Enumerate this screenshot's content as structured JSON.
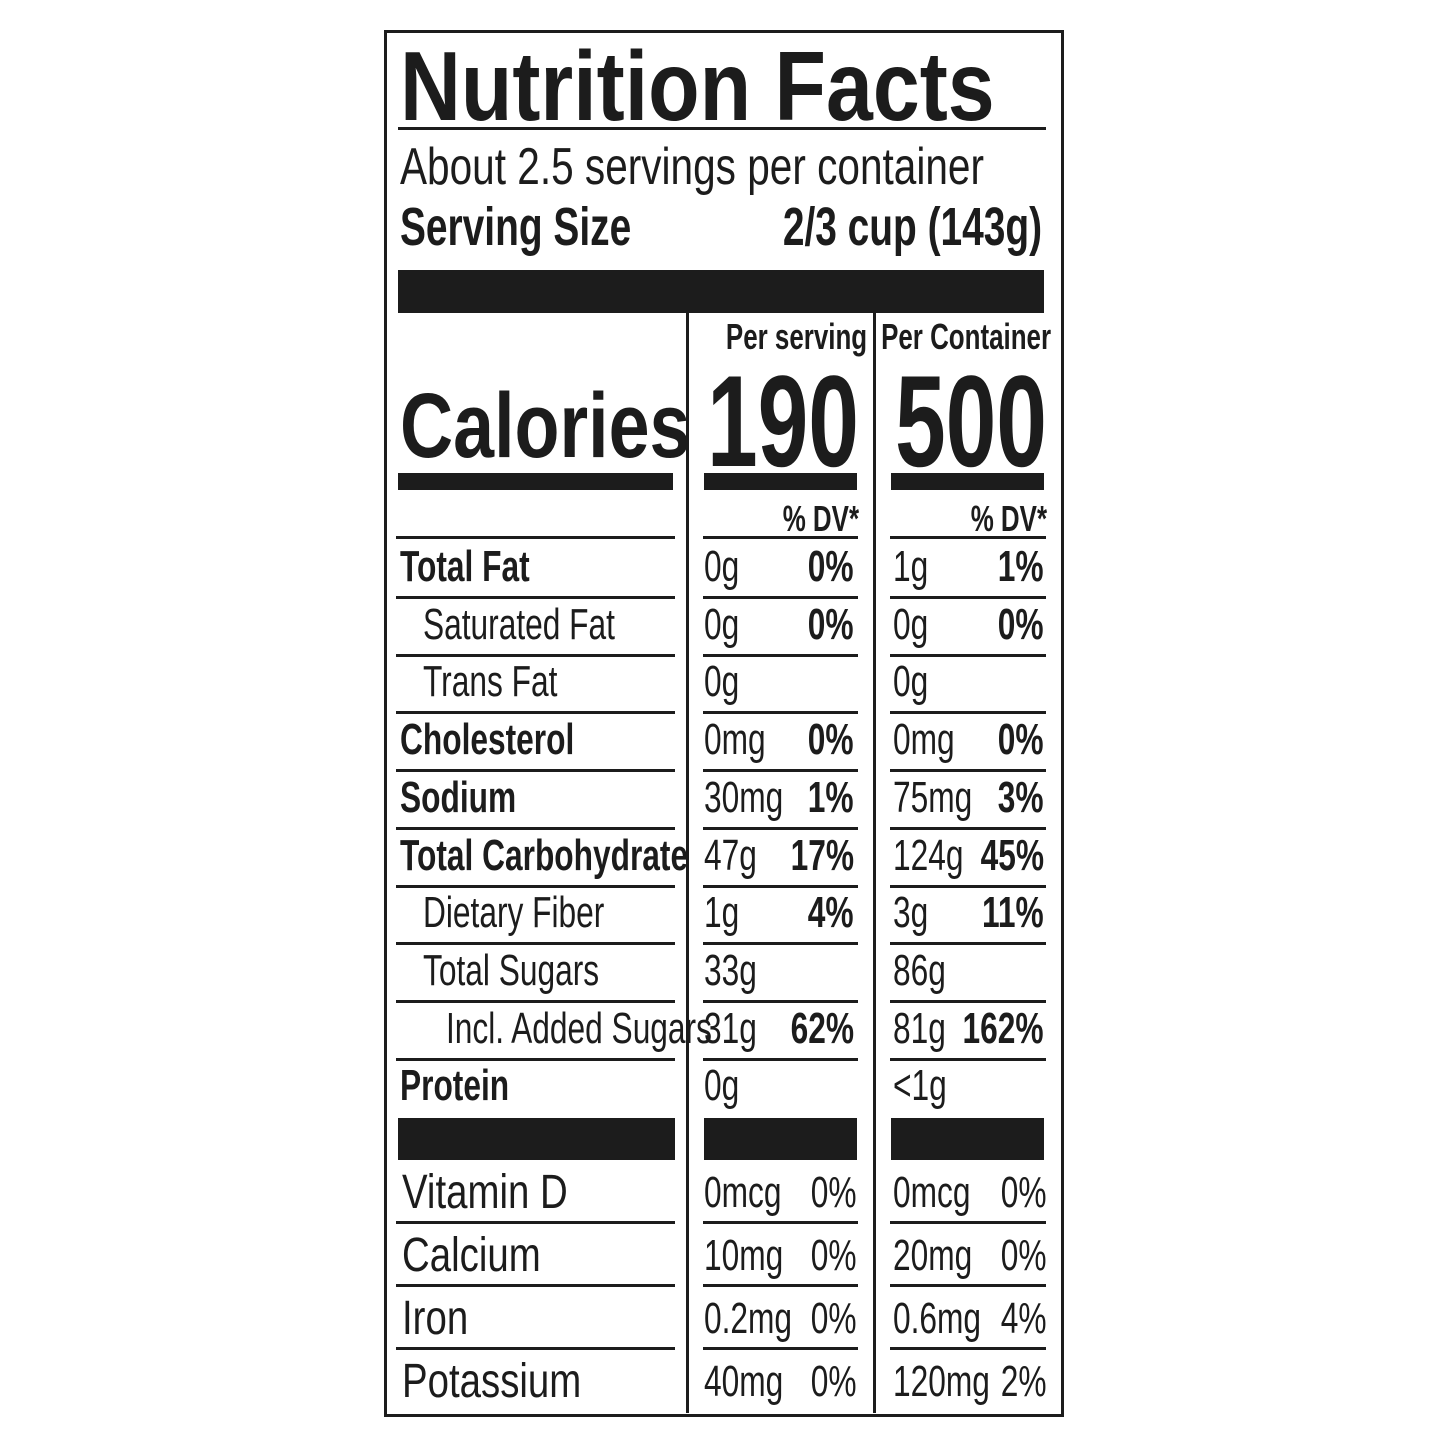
{
  "title": "Nutrition Facts",
  "servings_per_container": "About 2.5 servings per container",
  "serving_size_label": "Serving Size",
  "serving_size_value": "2/3 cup (143g)",
  "columns": [
    "Per serving",
    "Per Container"
  ],
  "calories_label": "Calories",
  "calories": [
    "190",
    "500"
  ],
  "dv_header": "% DV*",
  "nutrients": [
    {
      "label": "Total Fat",
      "bold": true,
      "indent": 0,
      "serving": [
        "0g",
        "0%"
      ],
      "container": [
        "1g",
        "1%"
      ]
    },
    {
      "label": "Saturated Fat",
      "bold": false,
      "indent": 1,
      "serving": [
        "0g",
        "0%"
      ],
      "container": [
        "0g",
        "0%"
      ]
    },
    {
      "label": "Trans Fat",
      "bold": false,
      "indent": 1,
      "serving": [
        "0g",
        ""
      ],
      "container": [
        "0g",
        ""
      ]
    },
    {
      "label": "Cholesterol",
      "bold": true,
      "indent": 0,
      "serving": [
        "0mg",
        "0%"
      ],
      "container": [
        "0mg",
        "0%"
      ]
    },
    {
      "label": "Sodium",
      "bold": true,
      "indent": 0,
      "serving": [
        "30mg",
        "1%"
      ],
      "container": [
        "75mg",
        "3%"
      ]
    },
    {
      "label": "Total Carbohydrate",
      "bold": true,
      "indent": 0,
      "serving": [
        "47g",
        "17%"
      ],
      "container": [
        "124g",
        "45%"
      ]
    },
    {
      "label": "Dietary Fiber",
      "bold": false,
      "indent": 1,
      "serving": [
        "1g",
        "4%"
      ],
      "container": [
        "3g",
        "11%"
      ]
    },
    {
      "label": "Total Sugars",
      "bold": false,
      "indent": 1,
      "serving": [
        "33g",
        ""
      ],
      "container": [
        "86g",
        ""
      ]
    },
    {
      "label": "Incl. Added Sugars",
      "bold": false,
      "indent": 2,
      "serving": [
        "31g",
        "62%"
      ],
      "container": [
        "81g",
        "162%"
      ]
    },
    {
      "label": "Protein",
      "bold": true,
      "indent": 0,
      "serving": [
        "0g",
        ""
      ],
      "container": [
        "<1g",
        ""
      ]
    }
  ],
  "vitamins": [
    {
      "label": "Vitamin D",
      "serving": [
        "0mcg",
        "0%"
      ],
      "container": [
        "0mcg",
        "0%"
      ]
    },
    {
      "label": "Calcium",
      "serving": [
        "10mg",
        "0%"
      ],
      "container": [
        "20mg",
        "0%"
      ]
    },
    {
      "label": "Iron",
      "serving": [
        "0.2mg",
        "0%"
      ],
      "container": [
        "0.6mg",
        "4%"
      ]
    },
    {
      "label": "Potassium",
      "serving": [
        "40mg",
        "0%"
      ],
      "container": [
        "120mg",
        "2%"
      ]
    }
  ]
}
